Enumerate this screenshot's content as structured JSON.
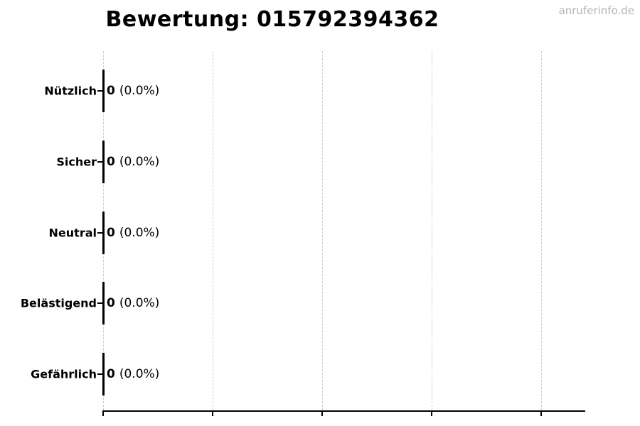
{
  "watermark": "anruferinfo.de",
  "chart_data": {
    "type": "bar",
    "orientation": "horizontal",
    "title": "Bewertung: 015792394362",
    "categories": [
      "Nützlich",
      "Sicher",
      "Neutral",
      "Belästigend",
      "Gefährlich"
    ],
    "values": [
      0,
      0,
      0,
      0,
      0
    ],
    "percentages": [
      "0.0%",
      "0.0%",
      "0.0%",
      "0.0%",
      "0.0%"
    ],
    "rows": [
      {
        "label": "Nützlich",
        "count": "0",
        "pct": "(0.0%)"
      },
      {
        "label": "Sicher",
        "count": "0",
        "pct": "(0.0%)"
      },
      {
        "label": "Neutral",
        "count": "0",
        "pct": "(0.0%)"
      },
      {
        "label": "Belästigend",
        "count": "0",
        "pct": "(0.0%)"
      },
      {
        "label": "Gefährlich",
        "count": "0",
        "pct": "(0.0%)"
      }
    ],
    "xlabel": "",
    "ylabel": "",
    "x_tick_count": 5,
    "x_tick_labels": [],
    "grid": "vertical-dashed",
    "legend": "none"
  },
  "colors": {
    "background": "#ffffff",
    "text": "#000000",
    "bar": "#000000",
    "axis": "#000000",
    "gridline": "#cccccc",
    "watermark": "#b3b3b3"
  }
}
